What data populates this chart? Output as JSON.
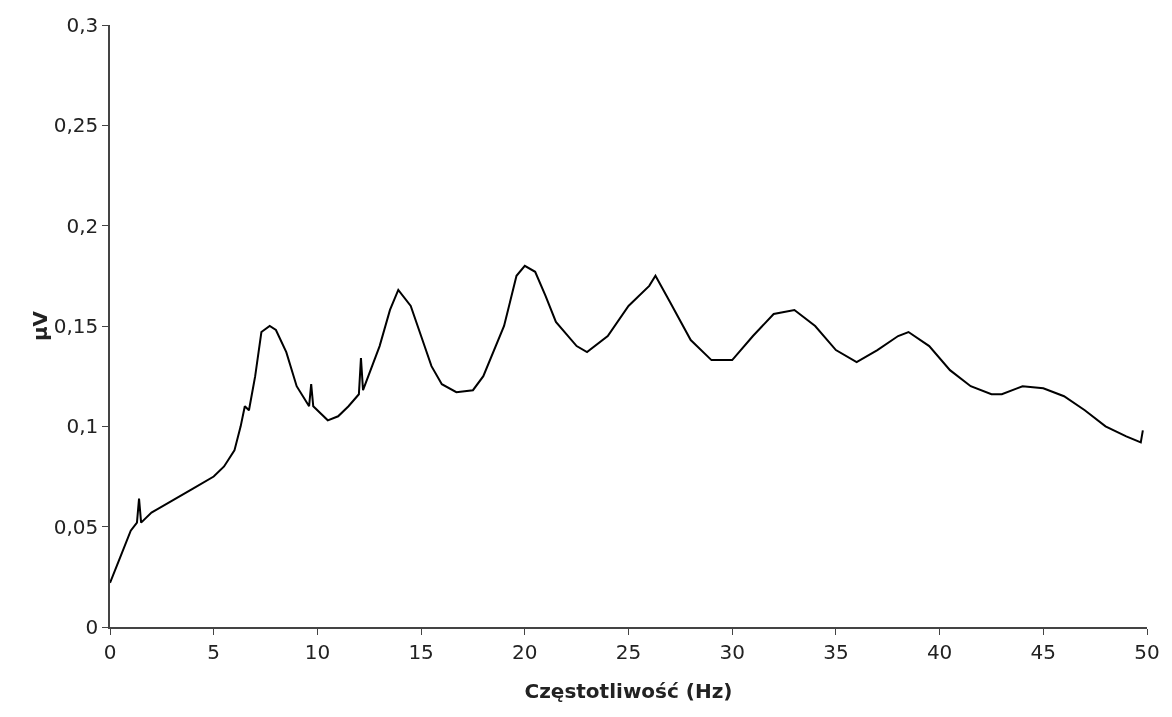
{
  "chart_data": {
    "type": "line",
    "xlabel": "Częstotliwość (Hz)",
    "ylabel": "µV",
    "x": [
      0,
      0.5,
      1,
      1.3,
      1.4,
      1.5,
      2,
      3,
      4,
      5,
      5.5,
      6,
      6.3,
      6.5,
      6.7,
      7,
      7.3,
      7.7,
      8,
      8.5,
      9,
      9.6,
      9.7,
      9.8,
      10.5,
      11,
      11.5,
      12,
      12.1,
      12.2,
      13,
      13.5,
      13.9,
      14.5,
      15,
      15.5,
      16,
      16.7,
      17.5,
      18,
      19,
      19.6,
      20,
      20.5,
      21,
      21.5,
      22.5,
      23,
      24,
      25,
      26,
      26.3,
      27,
      28,
      29,
      30,
      31,
      32,
      33,
      34,
      35,
      36,
      37,
      38,
      38.5,
      39.5,
      40.5,
      41.5,
      42.5,
      43,
      44,
      45,
      46,
      47,
      48,
      49,
      49.7,
      49.8
    ],
    "series": [
      {
        "color": "#000000",
        "values": [
          0.022,
          0.035,
          0.048,
          0.052,
          0.064,
          0.052,
          0.057,
          0.063,
          0.069,
          0.075,
          0.08,
          0.088,
          0.1,
          0.11,
          0.108,
          0.125,
          0.147,
          0.15,
          0.148,
          0.137,
          0.12,
          0.11,
          0.121,
          0.11,
          0.103,
          0.105,
          0.11,
          0.116,
          0.134,
          0.118,
          0.14,
          0.158,
          0.168,
          0.16,
          0.145,
          0.13,
          0.121,
          0.117,
          0.118,
          0.125,
          0.15,
          0.175,
          0.18,
          0.177,
          0.165,
          0.152,
          0.14,
          0.137,
          0.145,
          0.16,
          0.17,
          0.175,
          0.162,
          0.143,
          0.133,
          0.133,
          0.145,
          0.156,
          0.158,
          0.15,
          0.138,
          0.132,
          0.138,
          0.145,
          0.147,
          0.14,
          0.128,
          0.12,
          0.116,
          0.116,
          0.12,
          0.119,
          0.115,
          0.108,
          0.1,
          0.095,
          0.092,
          0.098
        ]
      }
    ],
    "xlim": [
      0,
      50
    ],
    "xticks": [
      0,
      5,
      10,
      15,
      20,
      25,
      30,
      35,
      40,
      45,
      50
    ],
    "ylim": [
      0,
      0.3
    ],
    "yticks": [
      0,
      {
        "value": 0.05,
        "label": "0,05"
      },
      {
        "value": 0.1,
        "label": "0,1"
      },
      {
        "value": 0.15,
        "label": "0,15"
      },
      {
        "value": 0.2,
        "label": "0,2"
      },
      {
        "value": 0.25,
        "label": "0,25"
      },
      {
        "value": 0.3,
        "label": "0,3"
      }
    ],
    "grid": false,
    "marker": "none",
    "line_style": "solid"
  }
}
